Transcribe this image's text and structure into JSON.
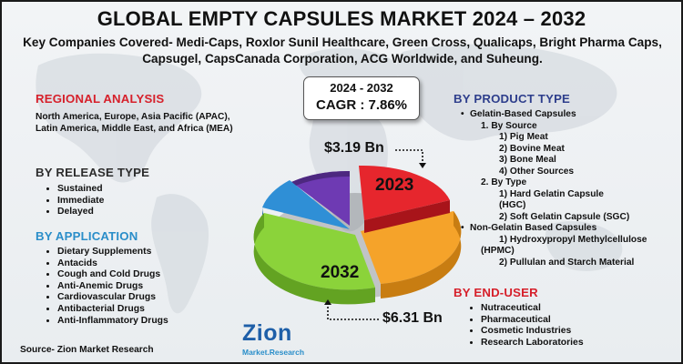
{
  "title": "GLOBAL EMPTY CAPSULES MARKET 2024 – 2032",
  "subtitle": "Key Companies Covered- Medi-Caps, Roxlor Sunil Healthcare, Green Cross, Qualicaps, Bright Pharma Caps, Capsugel, CapsCanada Corporation, ACG Worldwide, and Suheung.",
  "regional": {
    "heading": "REGIONAL ANALYSIS",
    "text": "North America, Europe, Asia Pacific (APAC), Latin America, Middle East, and Africa (MEA)"
  },
  "release": {
    "heading": "BY RELEASE TYPE",
    "items": [
      "Sustained",
      "Immediate",
      "Delayed"
    ]
  },
  "application": {
    "heading": "BY APPLICATION",
    "items": [
      "Dietary Supplements",
      "Antacids",
      "Cough and Cold Drugs",
      "Anti-Anemic Drugs",
      "Cardiovascular Drugs",
      "Antibacterial Drugs",
      "Anti-Inflammatory Drugs"
    ]
  },
  "product": {
    "heading": "BY PRODUCT TYPE",
    "gelatin": "Gelatin-Based Capsules",
    "by_source": "1. By Source",
    "sources": [
      "1) Pig Meat",
      "2) Bovine Meat",
      "3) Bone Meal",
      "4) Other Sources"
    ],
    "by_type": "2. By Type",
    "type_1a": "1) Hard Gelatin Capsule",
    "type_1b": "(HGC)",
    "type_2": "2) Soft Gelatin Capsule (SGC)",
    "non_gelatin": "Non-Gelatin Based Capsules",
    "ng_1a": "1) Hydroxypropyl Methylcellulose",
    "ng_1b": "(HPMC)",
    "ng_2": "2) Pullulan and Starch Material"
  },
  "end_user": {
    "heading": "BY END-USER",
    "items": [
      "Nutraceutical",
      "Pharmaceutical",
      "Cosmetic Industries",
      "Research Laboratories"
    ]
  },
  "cagr": {
    "period": "2024 - 2032",
    "value": "CAGR :  7.86%"
  },
  "pie": {
    "label_2023": "2023",
    "label_2032": "2032",
    "amount_2023": "$3.19 Bn",
    "amount_2032": "$6.31 Bn"
  },
  "source": "Source- Zion Market Research",
  "logo": {
    "name": "Zion",
    "tagline": "Market.Research"
  },
  "colors": {
    "red_heading": "#d6202b",
    "blue_heading": "#2a8ec9",
    "navy_heading": "#2e3e8c",
    "slice_red": "#e6262d",
    "slice_orange": "#f5a32a",
    "slice_green": "#8bd33a",
    "slice_blue": "#2f8fd6",
    "slice_purple": "#6e3ab3"
  }
}
